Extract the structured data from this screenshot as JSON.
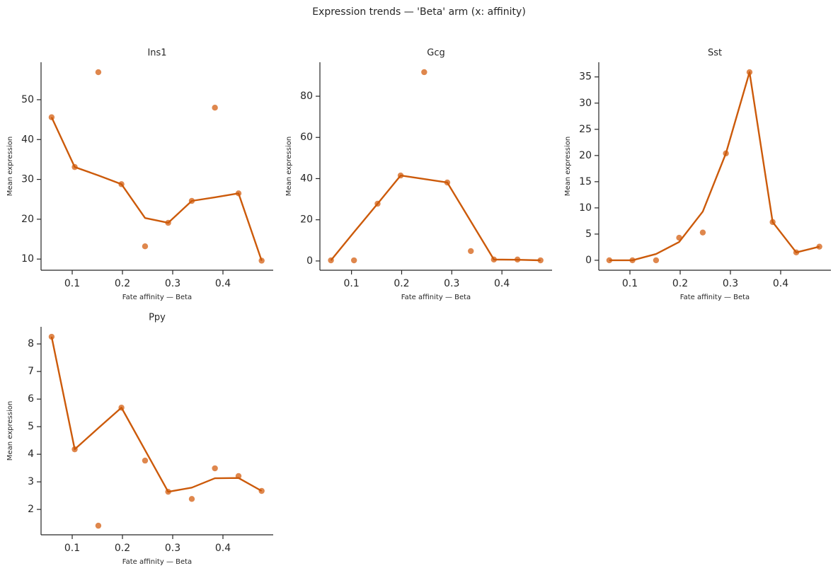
{
  "title": "Expression trends — 'Beta' arm  (x: affinity)",
  "chart_data": [
    {
      "type": "line",
      "title": "Ins1",
      "x_label": "Fate affinity — Beta",
      "y_label": "Mean expression",
      "x": [
        0.059,
        0.105,
        0.152,
        0.198,
        0.245,
        0.291,
        0.338,
        0.384,
        0.431,
        0.477
      ],
      "values": [
        45.6,
        33.1,
        31.0,
        28.8,
        20.3,
        19.1,
        24.6,
        25.5,
        26.5,
        9.6
      ],
      "points": [
        45.6,
        33.1,
        56.9,
        28.8,
        13.2,
        19.1,
        24.6,
        48.0,
        26.5,
        9.6
      ],
      "color": "#cc5a0a",
      "point_color": "#d9722e",
      "xlim": [
        0.038,
        0.5
      ],
      "xticks": [
        0.1,
        0.2,
        0.3,
        0.4
      ],
      "ylim": [
        7.2,
        59.4
      ],
      "yticks": [
        10,
        20,
        30,
        40,
        50
      ]
    },
    {
      "type": "line",
      "title": "Gcg",
      "x_label": "Fate affinity — Beta",
      "y_label": "Mean expression",
      "x": [
        0.059,
        0.105,
        0.152,
        0.198,
        0.245,
        0.291,
        0.338,
        0.384,
        0.431,
        0.477
      ],
      "values": [
        0.3,
        14.0,
        27.8,
        41.5,
        39.8,
        38.1,
        19.2,
        0.7,
        0.6,
        0.3
      ],
      "points": [
        0.3,
        0.3,
        27.8,
        41.5,
        91.7,
        38.1,
        4.8,
        0.7,
        0.7,
        0.3
      ],
      "color": "#cc5a0a",
      "point_color": "#d9722e",
      "xlim": [
        0.037,
        0.5
      ],
      "xticks": [
        0.1,
        0.2,
        0.3,
        0.4
      ],
      "ylim": [
        -4.5,
        96.5
      ],
      "yticks": [
        0,
        20,
        40,
        60,
        80
      ]
    },
    {
      "type": "line",
      "title": "Sst",
      "x_label": "Fate affinity — Beta",
      "y_label": "Mean expression",
      "x": [
        0.059,
        0.105,
        0.152,
        0.198,
        0.245,
        0.291,
        0.338,
        0.384,
        0.431,
        0.477
      ],
      "values": [
        0,
        0,
        1.2,
        3.5,
        9.3,
        20.4,
        35.9,
        7.3,
        1.5,
        2.6
      ],
      "points": [
        0,
        0,
        0,
        4.3,
        5.3,
        20.4,
        35.9,
        7.3,
        1.5,
        2.6
      ],
      "color": "#cc5a0a",
      "point_color": "#d9722e",
      "xlim": [
        0.038,
        0.5
      ],
      "xticks": [
        0.1,
        0.2,
        0.3,
        0.4
      ],
      "ylim": [
        -1.9,
        37.8
      ],
      "yticks": [
        0,
        5,
        10,
        15,
        20,
        25,
        30,
        35
      ]
    },
    {
      "type": "line",
      "title": "Ppy",
      "x_label": "Fate affinity — Beta",
      "y_label": "Mean expression",
      "x": [
        0.059,
        0.105,
        0.152,
        0.198,
        0.245,
        0.291,
        0.338,
        0.384,
        0.431,
        0.477
      ],
      "values": [
        8.26,
        4.18,
        4.95,
        5.69,
        4.15,
        2.64,
        2.79,
        3.13,
        3.14,
        2.67
      ],
      "points": [
        8.26,
        4.18,
        1.41,
        5.69,
        3.77,
        2.64,
        2.38,
        3.49,
        3.21,
        2.67
      ],
      "color": "#cc5a0a",
      "point_color": "#d9722e",
      "xlim": [
        0.038,
        0.5
      ],
      "xticks": [
        0.1,
        0.2,
        0.3,
        0.4
      ],
      "ylim": [
        1.08,
        8.62
      ],
      "yticks": [
        2,
        3,
        4,
        5,
        6,
        7,
        8
      ]
    }
  ]
}
